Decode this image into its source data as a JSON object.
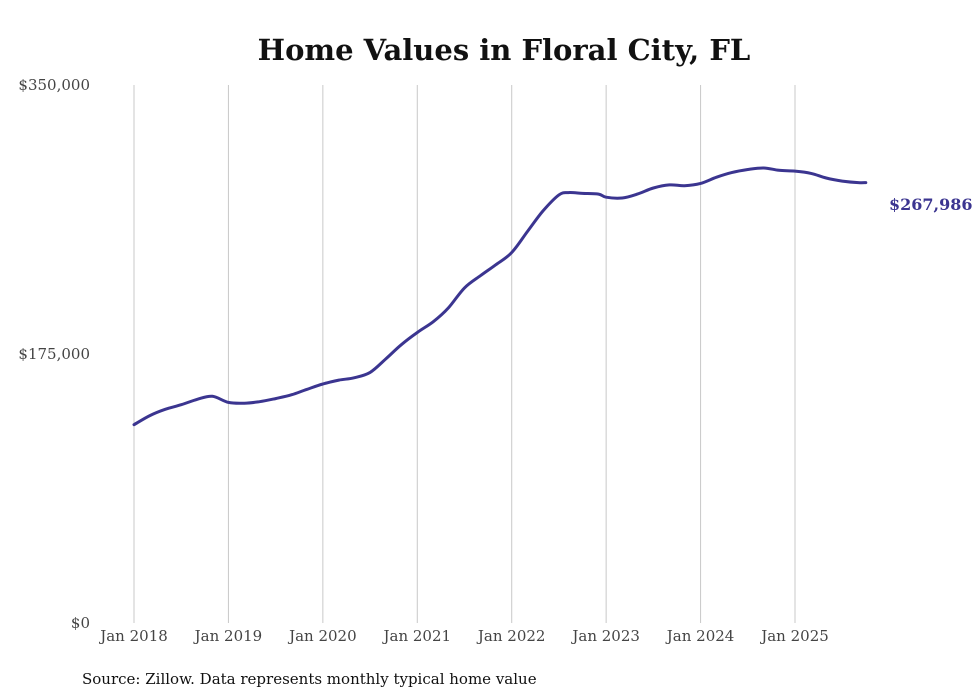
{
  "chart_data": {
    "type": "line",
    "title": "Home Values in Floral City, FL",
    "xlabel": "",
    "ylabel": "",
    "source": "Source: Zillow. Data represents monthly typical home value",
    "ylim": [
      0,
      350000
    ],
    "yticks": [
      {
        "value": 0,
        "label": "$0"
      },
      {
        "value": 175000,
        "label": "$175,000"
      },
      {
        "value": 350000,
        "label": "$350,000"
      }
    ],
    "xticks": [
      {
        "value": 2018.0,
        "label": "Jan 2018"
      },
      {
        "value": 2019.0,
        "label": "Jan 2019"
      },
      {
        "value": 2020.0,
        "label": "Jan 2020"
      },
      {
        "value": 2021.0,
        "label": "Jan 2021"
      },
      {
        "value": 2022.0,
        "label": "Jan 2022"
      },
      {
        "value": 2023.0,
        "label": "Jan 2023"
      },
      {
        "value": 2024.0,
        "label": "Jan 2024"
      },
      {
        "value": 2025.0,
        "label": "Jan 2025"
      }
    ],
    "xlim": [
      2018.0,
      2025.85
    ],
    "grid": "vertical",
    "series": [
      {
        "name": "Typical home value",
        "color": "#3b3590",
        "x": [
          2018.0,
          2018.17,
          2018.33,
          2018.5,
          2018.67,
          2018.83,
          2019.0,
          2019.17,
          2019.33,
          2019.5,
          2019.67,
          2019.83,
          2020.0,
          2020.17,
          2020.33,
          2020.5,
          2020.67,
          2020.83,
          2021.0,
          2021.17,
          2021.33,
          2021.5,
          2021.67,
          2021.83,
          2022.0,
          2022.17,
          2022.33,
          2022.5,
          2022.6,
          2022.75,
          2022.92,
          2023.0,
          2023.17,
          2023.33,
          2023.5,
          2023.67,
          2023.83,
          2024.0,
          2024.17,
          2024.33,
          2024.5,
          2024.67,
          2024.83,
          2025.0,
          2025.17,
          2025.33,
          2025.5,
          2025.67,
          2025.75,
          2025.83
        ],
        "values": [
          129000,
          135000,
          139000,
          142000,
          145500,
          147500,
          143500,
          143000,
          144000,
          146000,
          148500,
          152000,
          155500,
          158000,
          159500,
          163000,
          172000,
          181000,
          189000,
          196000,
          205000,
          218000,
          226000,
          233000,
          241000,
          255000,
          268000,
          278500,
          280000,
          279500,
          279000,
          277000,
          276500,
          279000,
          283000,
          285000,
          284500,
          286000,
          290000,
          293000,
          295000,
          296000,
          294500,
          294000,
          292500,
          289500,
          287500,
          286500,
          286500,
          267986
        ]
      }
    ],
    "end_label": {
      "text": "$267,986",
      "value": 267986,
      "color": "#3b3590"
    }
  }
}
